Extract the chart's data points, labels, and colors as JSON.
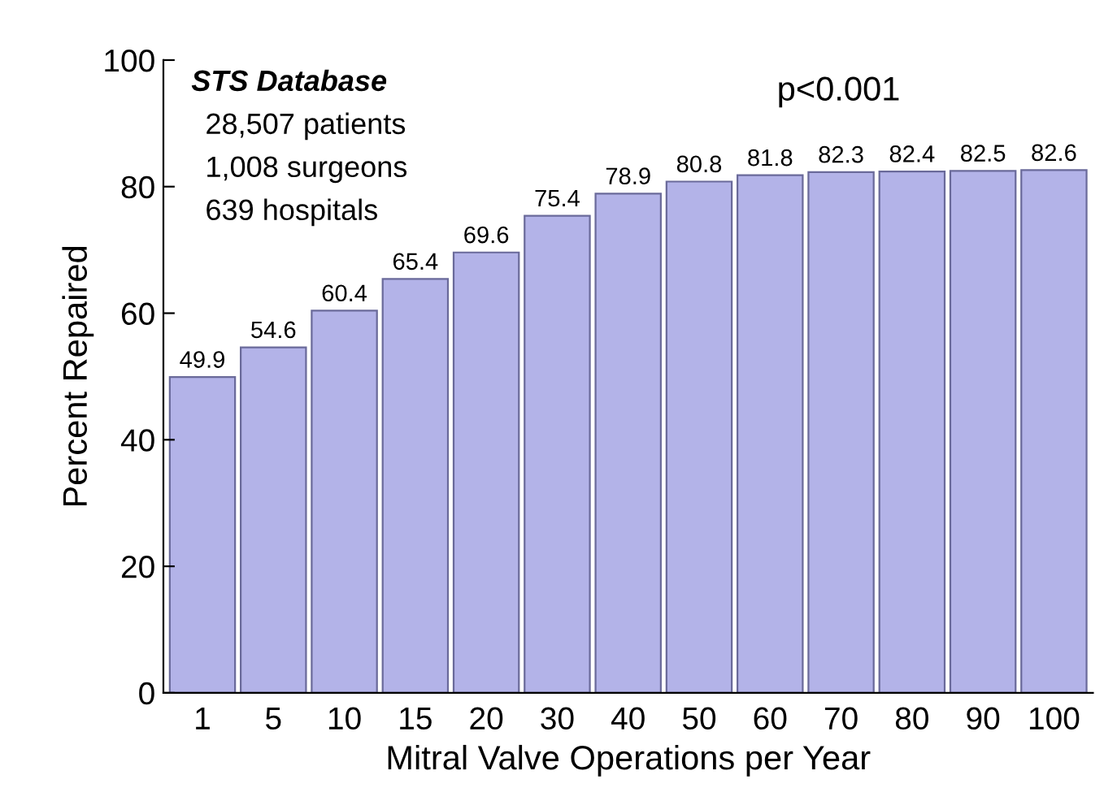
{
  "chart_data": {
    "type": "bar",
    "xlabel": "Mitral Valve Operations per Year",
    "ylabel": "Percent Repaired",
    "categories": [
      "1",
      "5",
      "10",
      "15",
      "20",
      "30",
      "40",
      "50",
      "60",
      "70",
      "80",
      "90",
      "100"
    ],
    "values": [
      49.9,
      54.6,
      60.4,
      65.4,
      69.6,
      75.4,
      78.9,
      80.8,
      81.8,
      82.3,
      82.4,
      82.5,
      82.6
    ],
    "color": "#b3b3e8",
    "ylim": [
      0,
      100
    ],
    "yticks": [
      0,
      20,
      40,
      60,
      80,
      100
    ],
    "data_labels": true,
    "grid": false,
    "legend": false,
    "annotations": [
      "STS Database",
      "28,507 patients",
      "1,008 surgeons",
      "639 hospitals",
      "p<0.001"
    ]
  }
}
